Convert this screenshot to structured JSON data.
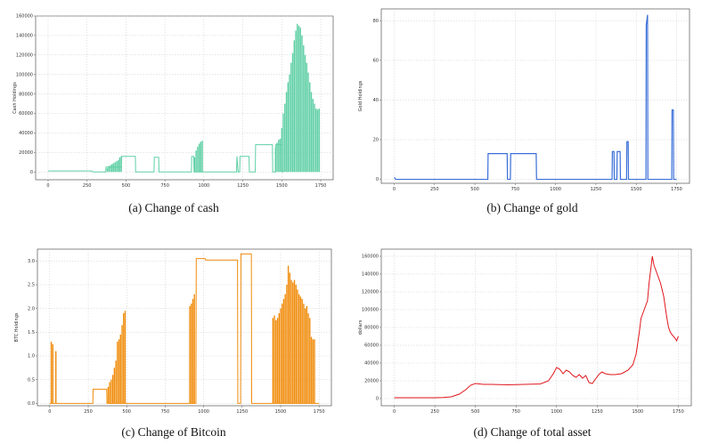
{
  "figure": {
    "panels": [
      {
        "caption": "(a)  Change of cash"
      },
      {
        "caption": "(b)  Change of gold"
      },
      {
        "caption": "(c)  Change of Bitcoin"
      },
      {
        "caption": "(d)  Change of total asset"
      }
    ]
  },
  "chart_data": [
    {
      "type": "line",
      "title": "",
      "xlabel": "",
      "ylabel": "Cash Holdings",
      "xlim": [
        -80,
        1830
      ],
      "ylim": [
        -8000,
        160000
      ],
      "xticks": [
        0,
        250,
        500,
        750,
        1000,
        1250,
        1500,
        1750
      ],
      "yticks": [
        0,
        20000,
        40000,
        60000,
        80000,
        100000,
        120000,
        140000,
        160000
      ],
      "grid": true,
      "color": "#5ecfa5",
      "line_points": [
        [
          0,
          1000
        ],
        [
          280,
          1000
        ],
        [
          290,
          0
        ],
        [
          370,
          0
        ],
        [
          372,
          5000
        ],
        [
          470,
          5000
        ],
        [
          472,
          16000
        ],
        [
          560,
          16000
        ],
        [
          562,
          0
        ],
        [
          680,
          0
        ],
        [
          682,
          15000
        ],
        [
          710,
          15000
        ],
        [
          712,
          0
        ],
        [
          920,
          0
        ],
        [
          922,
          16000
        ],
        [
          935,
          16000
        ],
        [
          937,
          0
        ],
        [
          1210,
          0
        ],
        [
          1212,
          16000
        ],
        [
          1220,
          0
        ],
        [
          1230,
          0
        ],
        [
          1232,
          16000
        ],
        [
          1290,
          16000
        ],
        [
          1292,
          0
        ],
        [
          1330,
          0
        ],
        [
          1332,
          28000
        ],
        [
          1440,
          28000
        ],
        [
          1442,
          0
        ],
        [
          1460,
          0
        ],
        [
          1462,
          28000
        ],
        [
          1500,
          28000
        ],
        [
          1502,
          0
        ],
        [
          1510,
          0
        ]
      ],
      "spikes": [
        [
          380,
          4000
        ],
        [
          390,
          6000
        ],
        [
          400,
          7000
        ],
        [
          410,
          8000
        ],
        [
          420,
          9000
        ],
        [
          430,
          10000
        ],
        [
          440,
          11000
        ],
        [
          450,
          12000
        ],
        [
          460,
          15000
        ],
        [
          470,
          16000
        ],
        [
          940,
          15000
        ],
        [
          950,
          22000
        ],
        [
          960,
          26000
        ],
        [
          970,
          29000
        ],
        [
          980,
          31000
        ],
        [
          990,
          32000
        ],
        [
          1460,
          25000
        ],
        [
          1470,
          30000
        ],
        [
          1480,
          33000
        ],
        [
          1490,
          34000
        ],
        [
          1500,
          45000
        ],
        [
          1510,
          60000
        ],
        [
          1520,
          70000
        ],
        [
          1530,
          82000
        ],
        [
          1540,
          92000
        ],
        [
          1550,
          100000
        ],
        [
          1560,
          112000
        ],
        [
          1570,
          122000
        ],
        [
          1580,
          135000
        ],
        [
          1590,
          145000
        ],
        [
          1600,
          152000
        ],
        [
          1610,
          150000
        ],
        [
          1620,
          148000
        ],
        [
          1630,
          140000
        ],
        [
          1640,
          130000
        ],
        [
          1650,
          120000
        ],
        [
          1660,
          112000
        ],
        [
          1670,
          102000
        ],
        [
          1680,
          92000
        ],
        [
          1690,
          82000
        ],
        [
          1700,
          75000
        ],
        [
          1710,
          70000
        ],
        [
          1720,
          65000
        ],
        [
          1730,
          64000
        ],
        [
          1740,
          65000
        ]
      ]
    },
    {
      "type": "line",
      "title": "",
      "xlabel": "",
      "ylabel": "Gold Holdings",
      "xlim": [
        -80,
        1830
      ],
      "ylim": [
        -2,
        86
      ],
      "xticks": [
        0,
        250,
        500,
        750,
        1000,
        1250,
        1500,
        1750
      ],
      "yticks": [
        0,
        20,
        40,
        60,
        80
      ],
      "grid": true,
      "color": "#3a6fd8",
      "line_points": [
        [
          0,
          1
        ],
        [
          10,
          0
        ],
        [
          580,
          0
        ],
        [
          582,
          13
        ],
        [
          700,
          13
        ],
        [
          702,
          0
        ],
        [
          720,
          0
        ],
        [
          722,
          13
        ],
        [
          880,
          13
        ],
        [
          882,
          0
        ],
        [
          1350,
          0
        ],
        [
          1352,
          14
        ],
        [
          1362,
          14
        ],
        [
          1364,
          0
        ],
        [
          1380,
          0
        ],
        [
          1382,
          14
        ],
        [
          1400,
          14
        ],
        [
          1402,
          0
        ],
        [
          1440,
          0
        ],
        [
          1442,
          19
        ],
        [
          1450,
          19
        ],
        [
          1452,
          0
        ],
        [
          1560,
          0
        ],
        [
          1562,
          78
        ],
        [
          1570,
          83
        ],
        [
          1572,
          0
        ],
        [
          1720,
          0
        ],
        [
          1722,
          35
        ],
        [
          1730,
          35
        ],
        [
          1732,
          0
        ],
        [
          1750,
          0
        ]
      ],
      "spikes": []
    },
    {
      "type": "line",
      "title": "",
      "xlabel": "",
      "ylabel": "BTC Holdings",
      "xlim": [
        -80,
        1830
      ],
      "ylim": [
        -0.05,
        3.25
      ],
      "xticks": [
        0,
        250,
        500,
        750,
        1000,
        1250,
        1500,
        1750
      ],
      "yticks": [
        0.0,
        0.5,
        1.0,
        1.5,
        2.0,
        2.5,
        3.0
      ],
      "grid": true,
      "color": "#f08c0c",
      "line_points": [
        [
          0,
          0
        ],
        [
          280,
          0
        ],
        [
          282,
          0.3
        ],
        [
          370,
          0.3
        ],
        [
          372,
          0
        ],
        [
          950,
          0
        ],
        [
          952,
          3.05
        ],
        [
          1010,
          3.05
        ],
        [
          1012,
          3.02
        ],
        [
          1220,
          3.02
        ],
        [
          1222,
          0
        ],
        [
          1240,
          0
        ],
        [
          1242,
          3.15
        ],
        [
          1310,
          3.15
        ],
        [
          1312,
          0
        ],
        [
          1750,
          0
        ]
      ],
      "spikes": [
        [
          10,
          1.3
        ],
        [
          20,
          1.25
        ],
        [
          40,
          1.1
        ],
        [
          380,
          0.35
        ],
        [
          390,
          0.45
        ],
        [
          400,
          0.5
        ],
        [
          410,
          0.6
        ],
        [
          420,
          0.75
        ],
        [
          430,
          0.9
        ],
        [
          440,
          1.3
        ],
        [
          450,
          1.35
        ],
        [
          460,
          1.45
        ],
        [
          470,
          1.65
        ],
        [
          480,
          1.9
        ],
        [
          490,
          1.95
        ],
        [
          910,
          2.05
        ],
        [
          920,
          2.1
        ],
        [
          930,
          2.2
        ],
        [
          940,
          2.3
        ],
        [
          1450,
          1.8
        ],
        [
          1460,
          1.85
        ],
        [
          1470,
          1.75
        ],
        [
          1480,
          1.8
        ],
        [
          1490,
          1.9
        ],
        [
          1500,
          2.0
        ],
        [
          1510,
          2.1
        ],
        [
          1520,
          2.2
        ],
        [
          1530,
          2.3
        ],
        [
          1540,
          2.5
        ],
        [
          1550,
          2.9
        ],
        [
          1560,
          2.75
        ],
        [
          1570,
          2.6
        ],
        [
          1580,
          2.55
        ],
        [
          1590,
          2.6
        ],
        [
          1600,
          2.5
        ],
        [
          1610,
          2.4
        ],
        [
          1620,
          2.3
        ],
        [
          1630,
          2.25
        ],
        [
          1640,
          2.2
        ],
        [
          1650,
          2.1
        ],
        [
          1660,
          2.0
        ],
        [
          1670,
          2.05
        ],
        [
          1680,
          1.9
        ],
        [
          1690,
          1.8
        ],
        [
          1700,
          1.4
        ],
        [
          1710,
          1.35
        ],
        [
          1720,
          1.35
        ]
      ]
    },
    {
      "type": "line",
      "title": "",
      "xlabel": "",
      "ylabel": "dollars",
      "xlim": [
        -80,
        1830
      ],
      "ylim": [
        -8000,
        168000
      ],
      "xticks": [
        0,
        250,
        500,
        750,
        1000,
        1250,
        1500,
        1750
      ],
      "yticks": [
        0,
        20000,
        40000,
        60000,
        80000,
        100000,
        120000,
        140000,
        160000
      ],
      "grid": true,
      "color": "#e0161c",
      "line_points": [
        [
          0,
          1000
        ],
        [
          250,
          1000
        ],
        [
          300,
          1200
        ],
        [
          350,
          2000
        ],
        [
          400,
          5000
        ],
        [
          440,
          10000
        ],
        [
          470,
          15000
        ],
        [
          500,
          17000
        ],
        [
          550,
          16000
        ],
        [
          600,
          16000
        ],
        [
          700,
          15500
        ],
        [
          800,
          16000
        ],
        [
          900,
          16500
        ],
        [
          950,
          20000
        ],
        [
          980,
          28000
        ],
        [
          1000,
          35000
        ],
        [
          1020,
          33000
        ],
        [
          1040,
          28000
        ],
        [
          1060,
          32000
        ],
        [
          1080,
          30000
        ],
        [
          1100,
          26000
        ],
        [
          1120,
          24000
        ],
        [
          1140,
          27000
        ],
        [
          1160,
          23000
        ],
        [
          1180,
          26000
        ],
        [
          1200,
          18000
        ],
        [
          1220,
          17000
        ],
        [
          1240,
          22000
        ],
        [
          1260,
          27000
        ],
        [
          1280,
          30000
        ],
        [
          1300,
          28000
        ],
        [
          1330,
          27000
        ],
        [
          1360,
          27000
        ],
        [
          1400,
          28000
        ],
        [
          1440,
          32000
        ],
        [
          1470,
          38000
        ],
        [
          1490,
          50000
        ],
        [
          1510,
          75000
        ],
        [
          1520,
          90000
        ],
        [
          1540,
          100000
        ],
        [
          1560,
          110000
        ],
        [
          1570,
          130000
        ],
        [
          1580,
          145000
        ],
        [
          1590,
          160000
        ],
        [
          1600,
          150000
        ],
        [
          1610,
          145000
        ],
        [
          1620,
          140000
        ],
        [
          1640,
          130000
        ],
        [
          1660,
          115000
        ],
        [
          1680,
          90000
        ],
        [
          1690,
          80000
        ],
        [
          1700,
          75000
        ],
        [
          1710,
          72000
        ],
        [
          1720,
          70000
        ],
        [
          1730,
          68000
        ],
        [
          1740,
          65000
        ],
        [
          1750,
          70000
        ]
      ],
      "spikes": []
    }
  ]
}
